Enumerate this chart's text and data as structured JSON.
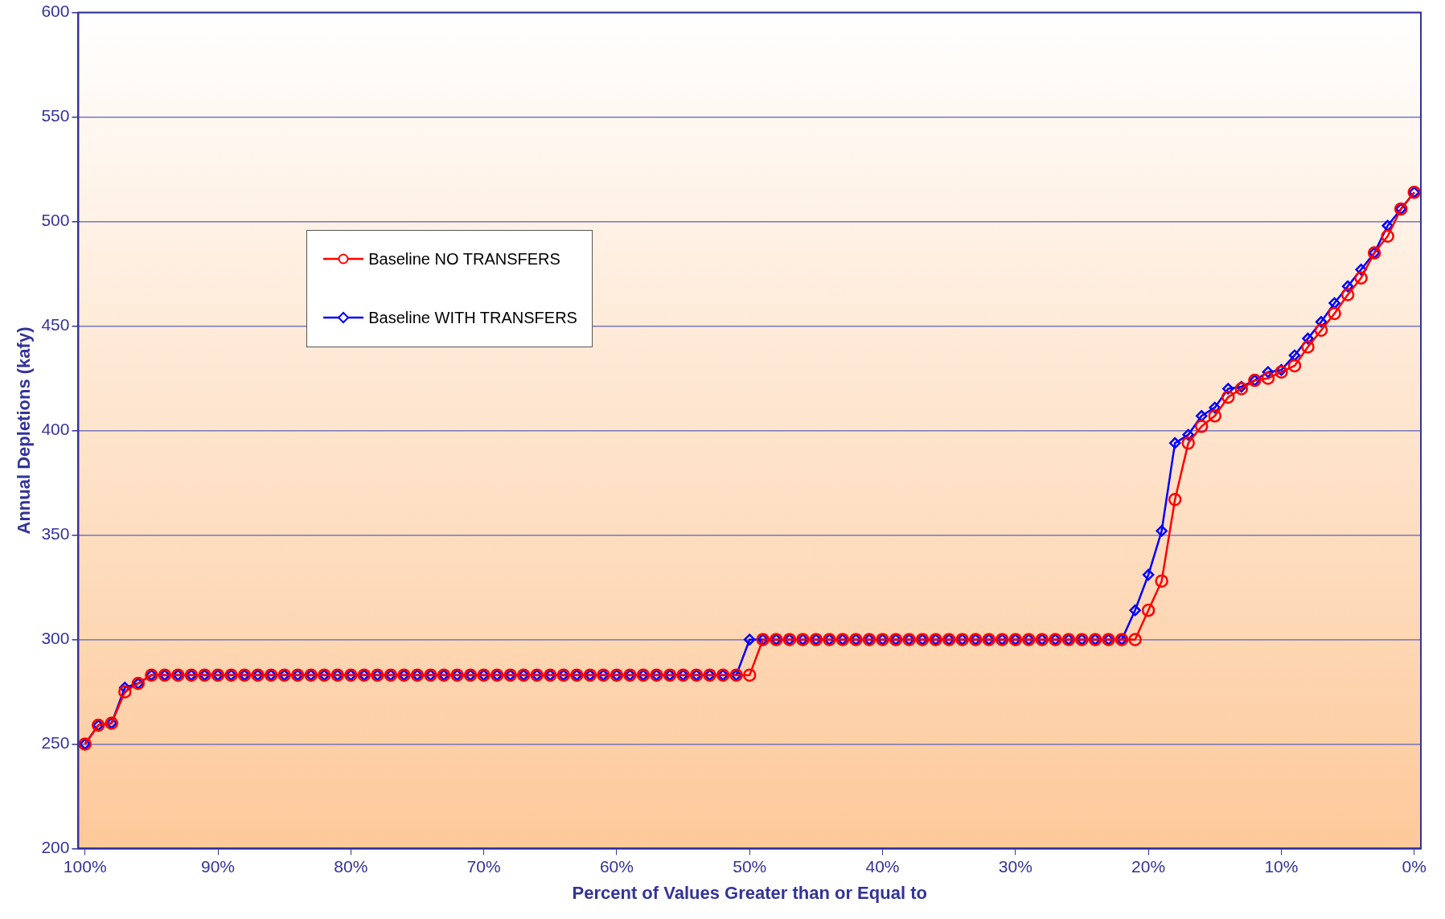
{
  "chart_data": {
    "type": "line",
    "xlabel": "Percent of Values Greater than or Equal to",
    "ylabel": "Annual Depletions (kafy)",
    "x": [
      100,
      99,
      98,
      97,
      96,
      95,
      94,
      93,
      92,
      91,
      90,
      89,
      88,
      87,
      86,
      85,
      84,
      83,
      82,
      81,
      80,
      79,
      78,
      77,
      76,
      75,
      74,
      73,
      72,
      71,
      70,
      69,
      68,
      67,
      66,
      65,
      64,
      63,
      62,
      61,
      60,
      59,
      58,
      57,
      56,
      55,
      54,
      53,
      52,
      51,
      50,
      49,
      48,
      47,
      46,
      45,
      44,
      43,
      42,
      41,
      40,
      39,
      38,
      37,
      36,
      35,
      34,
      33,
      32,
      31,
      30,
      29,
      28,
      27,
      26,
      25,
      24,
      23,
      22,
      21,
      20,
      19,
      18,
      17,
      16,
      15,
      14,
      13,
      12,
      11,
      10,
      9,
      8,
      7,
      6,
      5,
      4,
      3,
      2,
      1,
      0
    ],
    "series": [
      {
        "name": "Baseline NO TRANSFERS",
        "color": "#ff0000",
        "marker": "circle",
        "values": [
          250,
          259,
          260,
          275,
          279,
          283,
          283,
          283,
          283,
          283,
          283,
          283,
          283,
          283,
          283,
          283,
          283,
          283,
          283,
          283,
          283,
          283,
          283,
          283,
          283,
          283,
          283,
          283,
          283,
          283,
          283,
          283,
          283,
          283,
          283,
          283,
          283,
          283,
          283,
          283,
          283,
          283,
          283,
          283,
          283,
          283,
          283,
          283,
          283,
          283,
          283,
          300,
          300,
          300,
          300,
          300,
          300,
          300,
          300,
          300,
          300,
          300,
          300,
          300,
          300,
          300,
          300,
          300,
          300,
          300,
          300,
          300,
          300,
          300,
          300,
          300,
          300,
          300,
          300,
          300,
          314,
          328,
          367,
          394,
          402,
          407,
          416,
          420,
          424,
          425,
          428,
          431,
          440,
          448,
          456,
          465,
          473,
          485,
          493,
          506,
          514
        ]
      },
      {
        "name": "Baseline WITH TRANSFERS",
        "color": "#0000ff",
        "marker": "diamond",
        "values": [
          250,
          259,
          260,
          277,
          279,
          283,
          283,
          283,
          283,
          283,
          283,
          283,
          283,
          283,
          283,
          283,
          283,
          283,
          283,
          283,
          283,
          283,
          283,
          283,
          283,
          283,
          283,
          283,
          283,
          283,
          283,
          283,
          283,
          283,
          283,
          283,
          283,
          283,
          283,
          283,
          283,
          283,
          283,
          283,
          283,
          283,
          283,
          283,
          283,
          283,
          300,
          300,
          300,
          300,
          300,
          300,
          300,
          300,
          300,
          300,
          300,
          300,
          300,
          300,
          300,
          300,
          300,
          300,
          300,
          300,
          300,
          300,
          300,
          300,
          300,
          300,
          300,
          300,
          300,
          314,
          331,
          352,
          394,
          398,
          407,
          411,
          420,
          421,
          424,
          428,
          429,
          436,
          444,
          452,
          461,
          469,
          477,
          485,
          498,
          506,
          514
        ]
      }
    ],
    "xlim": [
      100.5,
      -0.5
    ],
    "xticks": [
      {
        "value": 100,
        "label": "100%"
      },
      {
        "value": 90,
        "label": "90%"
      },
      {
        "value": 80,
        "label": "80%"
      },
      {
        "value": 70,
        "label": "70%"
      },
      {
        "value": 60,
        "label": "60%"
      },
      {
        "value": 50,
        "label": "50%"
      },
      {
        "value": 40,
        "label": "40%"
      },
      {
        "value": 30,
        "label": "30%"
      },
      {
        "value": 20,
        "label": "20%"
      },
      {
        "value": 10,
        "label": "10%"
      },
      {
        "value": 0,
        "label": "0%"
      }
    ],
    "ylim": [
      200,
      600
    ],
    "yticks": [
      200,
      250,
      300,
      350,
      400,
      450,
      500,
      550,
      600
    ],
    "grid": "y",
    "legend": "top left",
    "line_style": "solid"
  }
}
